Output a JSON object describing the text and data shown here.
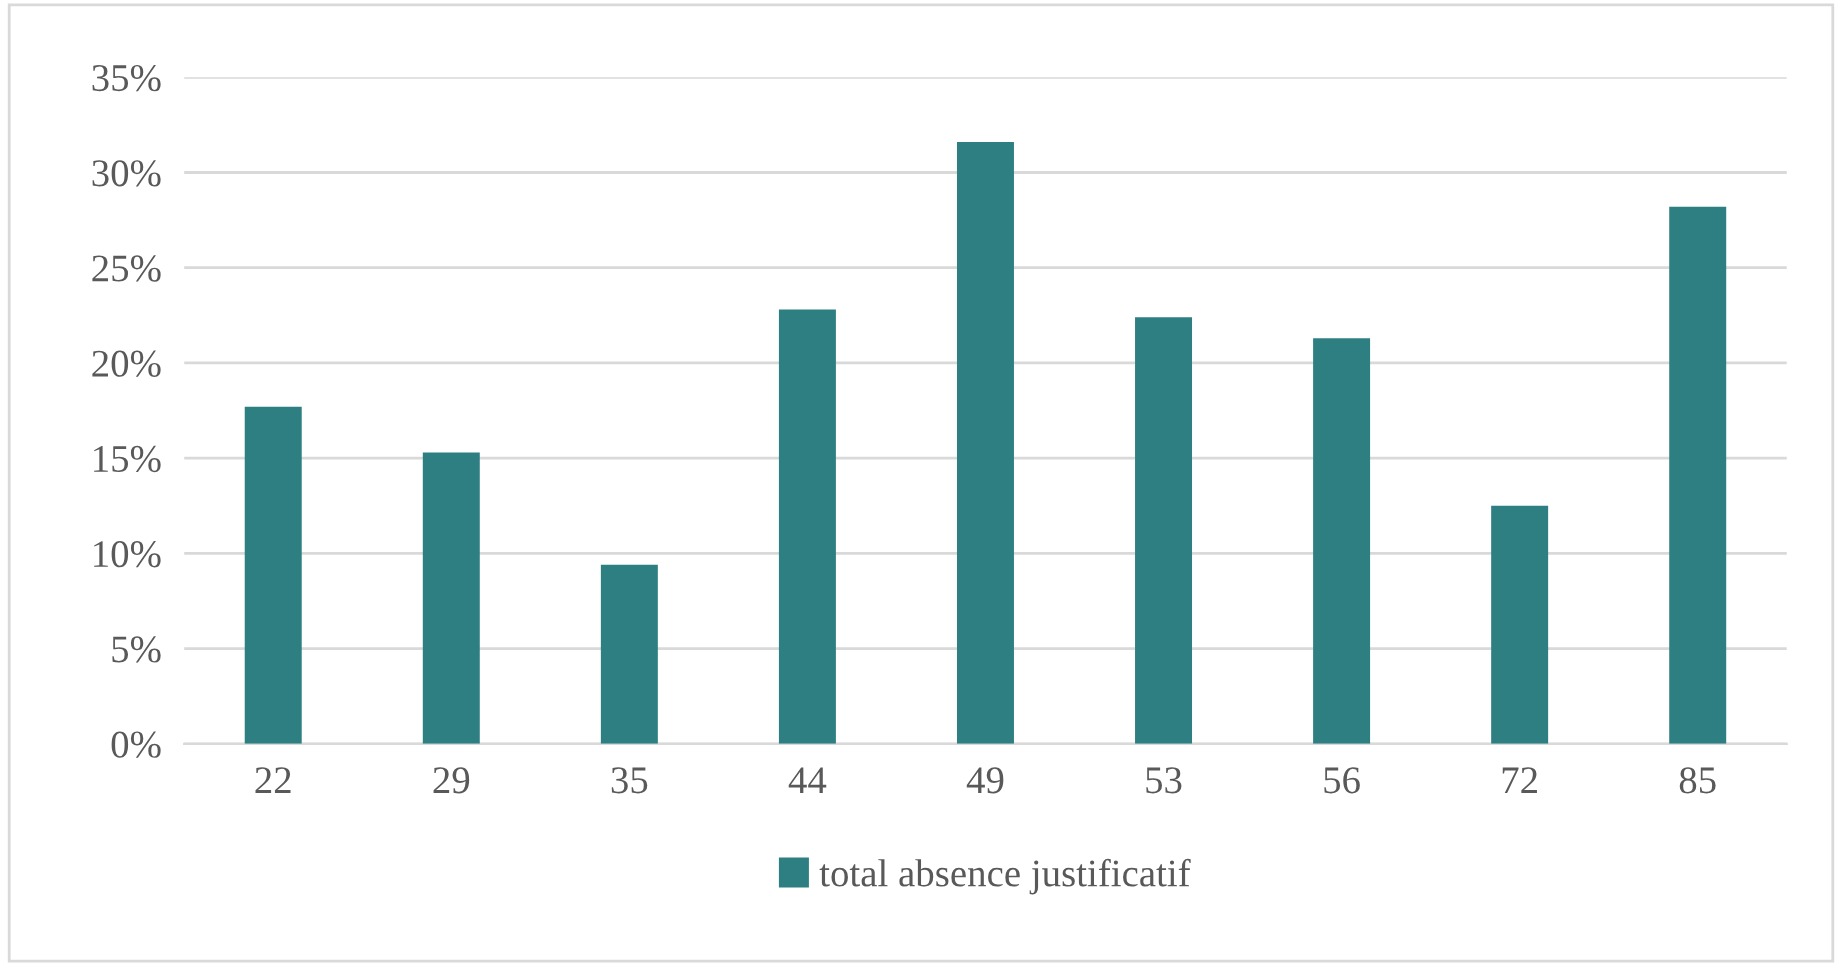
{
  "chart_data": {
    "type": "bar",
    "categories": [
      "22",
      "29",
      "35",
      "44",
      "49",
      "53",
      "56",
      "72",
      "85"
    ],
    "series": [
      {
        "name": "total absence justificatif",
        "color": "#2e7f82",
        "values": [
          17.7,
          15.3,
          9.4,
          22.8,
          31.6,
          22.4,
          21.3,
          12.5,
          28.2
        ]
      }
    ],
    "ylim": [
      0,
      35
    ],
    "yticks": [
      {
        "value": 0,
        "label": "0%"
      },
      {
        "value": 5,
        "label": "5%"
      },
      {
        "value": 10,
        "label": "10%"
      },
      {
        "value": 15,
        "label": "15%"
      },
      {
        "value": 20,
        "label": "20%"
      },
      {
        "value": 25,
        "label": "25%"
      },
      {
        "value": 30,
        "label": "30%"
      },
      {
        "value": 35,
        "label": "35%"
      }
    ],
    "grid": "y",
    "legend": "bottom"
  }
}
